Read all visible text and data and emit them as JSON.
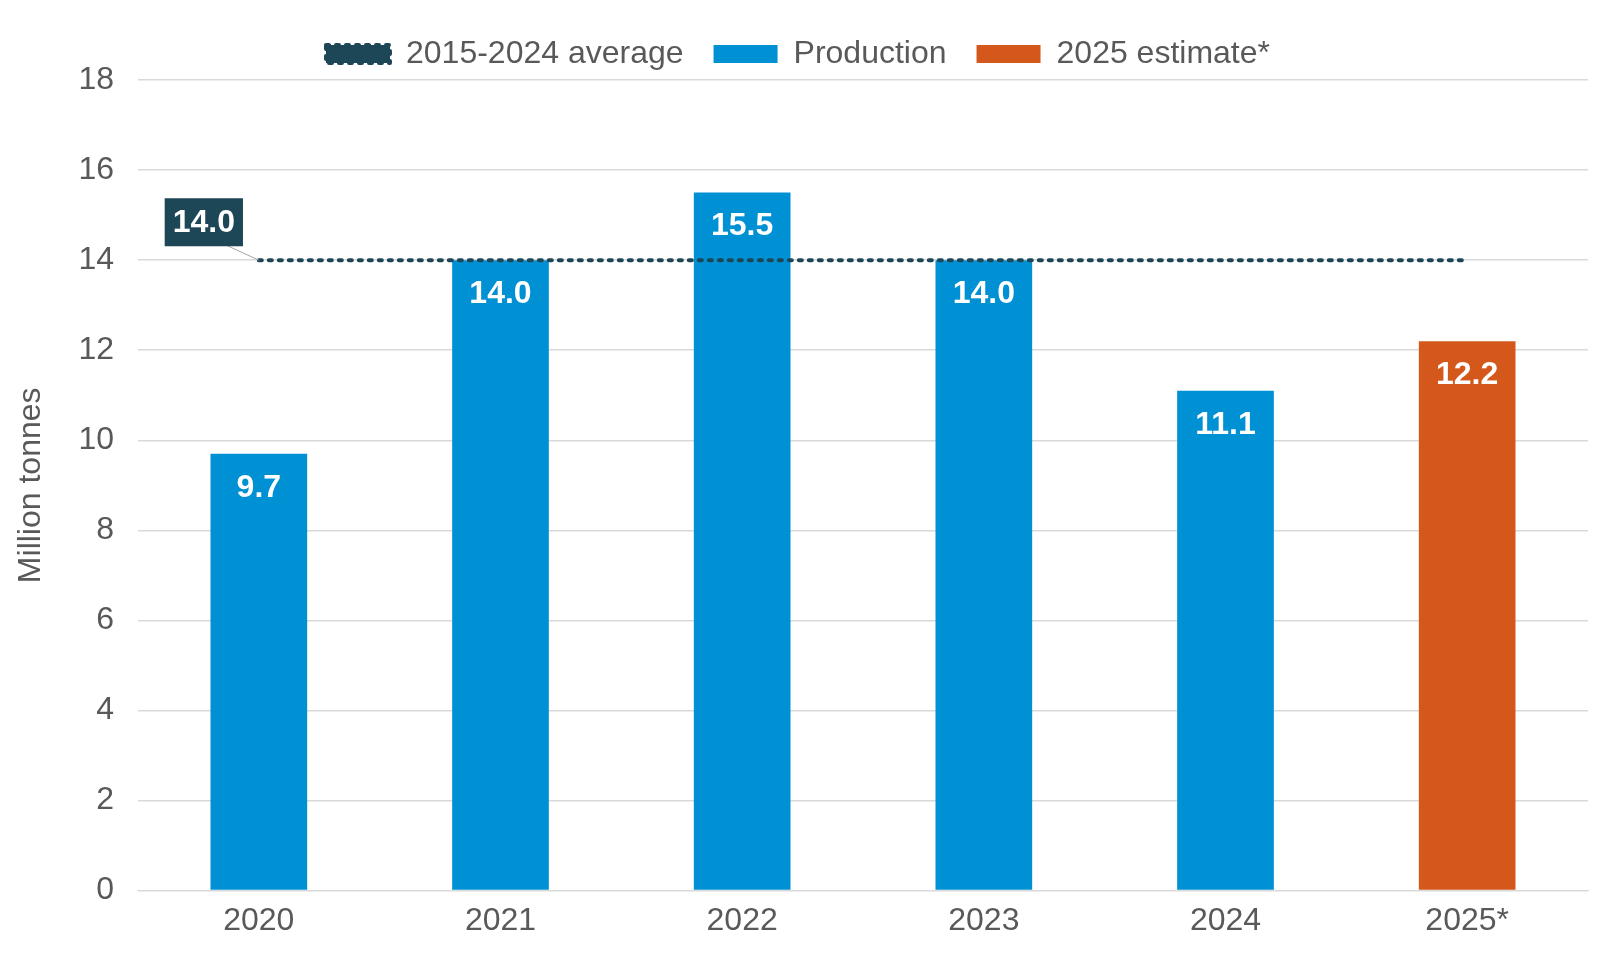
{
  "chart_data": {
    "type": "bar",
    "ylabel": "Million tonnes",
    "categories": [
      "2020",
      "2021",
      "2022",
      "2023",
      "2024",
      "2025*"
    ],
    "series": [
      {
        "name": "Production",
        "color": "#0090d4",
        "values": [
          9.7,
          14.0,
          15.5,
          14.0,
          11.1,
          null
        ],
        "value_labels": [
          "9.7",
          "14.0",
          "15.5",
          "14.0",
          "11.1",
          null
        ]
      },
      {
        "name": "2025 estimate*",
        "color": "#d4581c",
        "values": [
          null,
          null,
          null,
          null,
          null,
          12.2
        ],
        "value_labels": [
          null,
          null,
          null,
          null,
          null,
          "12.2"
        ]
      },
      {
        "name": "2015-2024 average",
        "type": "line",
        "color": "#1d4656",
        "line_style": "dotted",
        "marker": "none",
        "values": [
          14.0,
          14.0,
          14.0,
          14.0,
          14.0,
          14.0
        ],
        "value_labels": [
          "14.0",
          null,
          null,
          null,
          null,
          null
        ]
      }
    ],
    "ylim": [
      0,
      18
    ],
    "yticks": [
      0,
      2,
      4,
      6,
      8,
      10,
      12,
      14,
      16,
      18
    ],
    "grid": "y",
    "legend": "top"
  }
}
